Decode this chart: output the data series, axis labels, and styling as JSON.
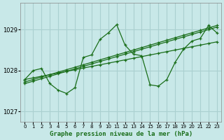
{
  "title": "Graphe pression niveau de la mer (hPa)",
  "bg_color": "#c8e8e8",
  "grid_color": "#aad0d0",
  "line_color": "#1a6e1a",
  "ylim": [
    1026.75,
    1029.65
  ],
  "xlim": [
    -0.5,
    23.5
  ],
  "yticks": [
    1027,
    1028,
    1029
  ],
  "xticks": [
    0,
    1,
    2,
    3,
    4,
    5,
    6,
    7,
    8,
    9,
    10,
    11,
    12,
    13,
    14,
    15,
    16,
    17,
    18,
    19,
    20,
    21,
    22,
    23
  ],
  "series": [
    [
      1027.78,
      1027.82,
      1027.86,
      1027.9,
      1027.94,
      1027.98,
      1028.02,
      1028.06,
      1028.1,
      1028.14,
      1028.18,
      1028.22,
      1028.26,
      1028.3,
      1028.34,
      1028.38,
      1028.42,
      1028.46,
      1028.5,
      1028.54,
      1028.58,
      1028.62,
      1028.66,
      1028.7
    ],
    [
      1027.72,
      1027.78,
      1027.84,
      1027.9,
      1027.96,
      1028.02,
      1028.08,
      1028.14,
      1028.2,
      1028.26,
      1028.32,
      1028.38,
      1028.44,
      1028.5,
      1028.56,
      1028.62,
      1028.68,
      1028.74,
      1028.8,
      1028.86,
      1028.92,
      1028.98,
      1029.04,
      1029.1
    ],
    [
      1027.68,
      1027.74,
      1027.8,
      1027.86,
      1027.92,
      1027.98,
      1028.04,
      1028.1,
      1028.16,
      1028.22,
      1028.28,
      1028.34,
      1028.4,
      1028.46,
      1028.52,
      1028.58,
      1028.64,
      1028.7,
      1028.76,
      1028.82,
      1028.88,
      1028.94,
      1029.0,
      1029.06
    ],
    [
      1027.78,
      1028.0,
      1028.05,
      1027.68,
      1027.52,
      1027.44,
      1027.58,
      1028.32,
      1028.38,
      1028.76,
      1028.92,
      1029.12,
      1028.62,
      1028.4,
      1028.36,
      1027.65,
      1027.62,
      1027.78,
      1028.2,
      1028.52,
      1028.72,
      1028.78,
      1029.1,
      1028.92
    ]
  ]
}
